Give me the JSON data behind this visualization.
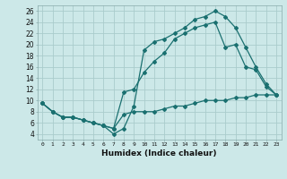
{
  "xlabel": "Humidex (Indice chaleur)",
  "bg_color": "#cce8e8",
  "grid_color": "#b0d8d8",
  "line_color": "#1a7070",
  "xlim": [
    -0.5,
    23.5
  ],
  "ylim": [
    3,
    27
  ],
  "xticks": [
    0,
    1,
    2,
    3,
    4,
    5,
    6,
    7,
    8,
    9,
    10,
    11,
    12,
    13,
    14,
    15,
    16,
    17,
    18,
    19,
    20,
    21,
    22,
    23
  ],
  "yticks": [
    4,
    6,
    8,
    10,
    12,
    14,
    16,
    18,
    20,
    22,
    24,
    26
  ],
  "line1_x": [
    0,
    1,
    2,
    3,
    4,
    5,
    6,
    7,
    8,
    9,
    10,
    11,
    12,
    13,
    14,
    15,
    16,
    17,
    18,
    19,
    20,
    21,
    22,
    23
  ],
  "line1_y": [
    9.5,
    8,
    7,
    7,
    6.5,
    6,
    5.5,
    5,
    7.5,
    8,
    8,
    8,
    8.5,
    9,
    9,
    9.5,
    10,
    10,
    10,
    10.5,
    10.5,
    11,
    11,
    11
  ],
  "line2_x": [
    0,
    1,
    2,
    3,
    4,
    5,
    6,
    7,
    8,
    9,
    10,
    11,
    12,
    13,
    14,
    15,
    16,
    17,
    18,
    19,
    20,
    21,
    22,
    23
  ],
  "line2_y": [
    9.5,
    8,
    7,
    7,
    6.5,
    6,
    5.5,
    5,
    11.5,
    12,
    15,
    17,
    18.5,
    21,
    22,
    23,
    23.5,
    24,
    19.5,
    20,
    16,
    15.5,
    12.5,
    11
  ],
  "line3_x": [
    0,
    1,
    2,
    3,
    4,
    5,
    6,
    7,
    8,
    9,
    10,
    11,
    12,
    13,
    14,
    15,
    16,
    17,
    18,
    19,
    20,
    21,
    22,
    23
  ],
  "line3_y": [
    9.5,
    8,
    7,
    7,
    6.5,
    6,
    5.5,
    4,
    5,
    9,
    19,
    20.5,
    21,
    22,
    23,
    24.5,
    25,
    26,
    25,
    23,
    19.5,
    16,
    13,
    11
  ]
}
